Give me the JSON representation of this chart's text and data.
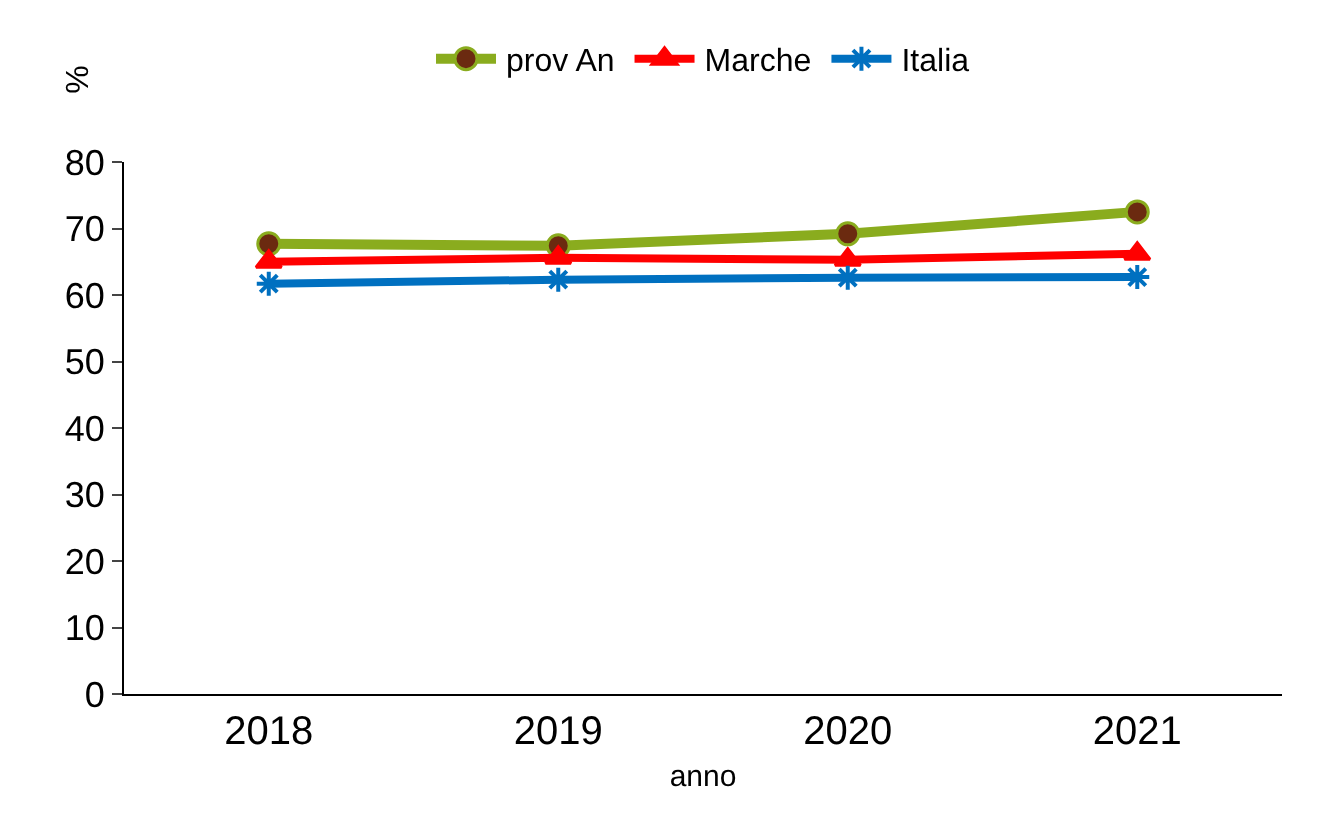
{
  "chart_data": {
    "type": "line",
    "categories": [
      "2018",
      "2019",
      "2020",
      "2021"
    ],
    "xlabel": "anno",
    "ylabel": "%",
    "ylim": [
      0,
      80
    ],
    "yticks": [
      0,
      10,
      20,
      30,
      40,
      50,
      60,
      70,
      80
    ],
    "grid": false,
    "legend": "top",
    "line_style": "solid",
    "series": [
      {
        "name": "prov An",
        "color": "#8aac1e",
        "marker": "circle",
        "values": [
          67.7,
          67.4,
          69.2,
          72.5
        ]
      },
      {
        "name": "Marche",
        "color": "#ff0000",
        "marker": "triangle",
        "values": [
          65.0,
          65.6,
          65.3,
          66.2
        ]
      },
      {
        "name": "Italia",
        "color": "#0070c0",
        "marker": "cross",
        "values": [
          61.7,
          62.3,
          62.6,
          62.7
        ]
      }
    ]
  }
}
